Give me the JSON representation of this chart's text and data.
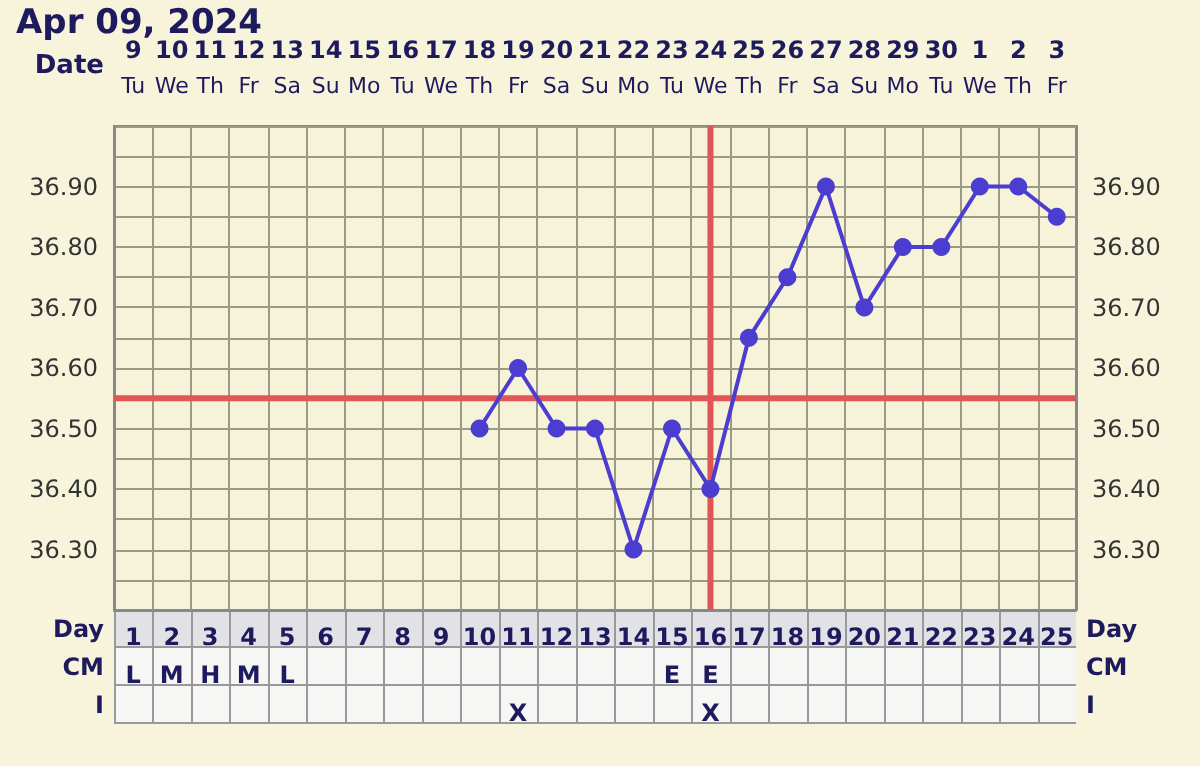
{
  "chart_data": {
    "type": "line",
    "title": "Apr 09, 2024",
    "xlabel": "Day",
    "categories": [
      "1\nL",
      "2\nM",
      "3\nH",
      "4\nM",
      "5\nL",
      "6",
      "7",
      "8",
      "9",
      "10",
      "11\n\nX",
      "12",
      "13",
      "14",
      "15\nE",
      "16\nE\nX",
      "17",
      "18",
      "19",
      "20",
      "21",
      "22",
      "23",
      "24",
      "25"
    ],
    "series": [
      {
        "color": "#4a3dd0",
        "values": [
          null,
          null,
          null,
          null,
          null,
          null,
          null,
          null,
          null,
          36.5,
          36.6,
          36.5,
          36.5,
          36.3,
          36.5,
          36.4,
          36.65,
          36.75,
          36.9,
          36.7,
          36.8,
          36.8,
          36.9,
          36.9,
          36.85
        ]
      }
    ],
    "ylim": [
      36.2,
      37.0
    ],
    "yticks": [
      {
        "value": 36.2,
        "label": null
      },
      {
        "value": 36.25,
        "label": null
      },
      {
        "value": 36.3,
        "label": "36.30"
      },
      {
        "value": 36.35,
        "label": null
      },
      {
        "value": 36.4,
        "label": "36.40"
      },
      {
        "value": 36.45,
        "label": null
      },
      {
        "value": 36.5,
        "label": "36.50"
      },
      {
        "value": 36.6,
        "label": "36.60"
      },
      {
        "value": 36.65,
        "label": null
      },
      {
        "value": 36.7,
        "label": "36.70"
      },
      {
        "value": 36.75,
        "label": null
      },
      {
        "value": 36.8,
        "label": "36.80"
      },
      {
        "value": 36.85,
        "label": null
      },
      {
        "value": 36.9,
        "label": "36.90"
      },
      {
        "value": 36.95,
        "label": null
      },
      {
        "value": 37.0,
        "label": null
      }
    ],
    "y2lim": [
      36.2,
      37.0
    ],
    "y2ticks": [
      {
        "value": 36.2,
        "label": null
      },
      {
        "value": 36.25,
        "label": null
      },
      {
        "value": 36.3,
        "label": "36.30"
      },
      {
        "value": 36.35,
        "label": null
      },
      {
        "value": 36.4,
        "label": "36.40"
      },
      {
        "value": 36.45,
        "label": null
      },
      {
        "value": 36.5,
        "label": "36.50"
      },
      {
        "value": 36.6,
        "label": "36.60"
      },
      {
        "value": 36.65,
        "label": null
      },
      {
        "value": 36.7,
        "label": "36.70"
      },
      {
        "value": 36.75,
        "label": null
      },
      {
        "value": 36.8,
        "label": "36.80"
      },
      {
        "value": 36.85,
        "label": null
      },
      {
        "value": 36.9,
        "label": "36.90"
      },
      {
        "value": 36.95,
        "label": null
      },
      {
        "value": 37.0,
        "label": null
      }
    ],
    "ref_lines": [
      {
        "axis": "y",
        "value": 36.55,
        "color": "#e05555"
      },
      {
        "axis": "x",
        "value": "16\nE\nX",
        "color": "#e05555"
      }
    ],
    "annotations": [
      "Date",
      "9\nTu",
      "10\nWe",
      "11\nTh",
      "12\nFr",
      "13\nSa",
      "14\nSu",
      "15\nMo",
      "16\nTu",
      "17\nWe",
      "18\nTh",
      "19\nFr",
      "20\nSa",
      "21\nSu",
      "22\nMo",
      "23\nTu",
      "24\nWe",
      "25\nTh",
      "26\nFr",
      "27\nSa",
      "28\nSu",
      "29\nMo",
      "30\nTu",
      "1\nWe",
      "2\nTh",
      "3\nFr",
      "CM",
      "I"
    ],
    "grid": true,
    "marker": "circle",
    "line_style": "solid"
  }
}
